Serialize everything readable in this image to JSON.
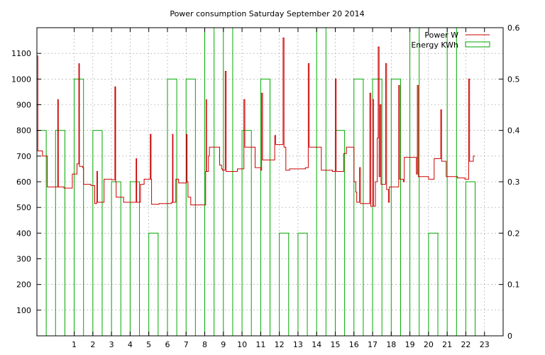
{
  "chart_data": {
    "type": "line",
    "title": "Power consumption Saturday September 20 2014",
    "xlabel": "",
    "ylabel": "",
    "y2label": "",
    "xlim": [
      -1,
      24
    ],
    "ylim": [
      0,
      1200
    ],
    "y2lim": [
      0,
      0.6
    ],
    "x_ticks": [
      "1",
      "2",
      "3",
      "4",
      "5",
      "6",
      "7",
      "8",
      "9",
      "10",
      "11",
      "12",
      "13",
      "14",
      "15",
      "16",
      "17",
      "18",
      "19",
      "20",
      "21",
      "22",
      "23"
    ],
    "y_ticks": [
      "100",
      "200",
      "300",
      "400",
      "500",
      "600",
      "700",
      "800",
      "900",
      "1000",
      "1100"
    ],
    "y2_ticks": [
      "0",
      "0.1",
      "0.2",
      "0.3",
      "0.4",
      "0.5",
      "0.6"
    ],
    "grid": true,
    "legend_position": "top-right",
    "colors": {
      "power": "#cc0000",
      "energy": "#00aa00"
    },
    "series": [
      {
        "name": "Power W",
        "axis": "left",
        "style": "step-line",
        "color": "#cc0000",
        "points": [
          [
            -1.0,
            1090
          ],
          [
            -0.95,
            720
          ],
          [
            -0.75,
            720
          ],
          [
            -0.7,
            700
          ],
          [
            -0.5,
            700
          ],
          [
            -0.45,
            580
          ],
          [
            0.1,
            580
          ],
          [
            0.12,
            920
          ],
          [
            0.15,
            580
          ],
          [
            0.4,
            580
          ],
          [
            0.45,
            575
          ],
          [
            0.8,
            575
          ],
          [
            0.9,
            630
          ],
          [
            1.1,
            630
          ],
          [
            1.15,
            670
          ],
          [
            1.22,
            670
          ],
          [
            1.25,
            1060
          ],
          [
            1.28,
            660
          ],
          [
            1.45,
            655
          ],
          [
            1.5,
            590
          ],
          [
            1.85,
            590
          ],
          [
            1.9,
            585
          ],
          [
            2.05,
            585
          ],
          [
            2.1,
            515
          ],
          [
            2.2,
            520
          ],
          [
            2.22,
            640
          ],
          [
            2.25,
            520
          ],
          [
            2.55,
            520
          ],
          [
            2.6,
            610
          ],
          [
            2.9,
            610
          ],
          [
            3.0,
            608
          ],
          [
            3.15,
            608
          ],
          [
            3.18,
            970
          ],
          [
            3.22,
            600
          ],
          [
            3.25,
            540
          ],
          [
            3.6,
            540
          ],
          [
            3.65,
            520
          ],
          [
            4.3,
            520
          ],
          [
            4.32,
            690
          ],
          [
            4.35,
            520
          ],
          [
            4.5,
            520
          ],
          [
            4.55,
            590
          ],
          [
            4.7,
            590
          ],
          [
            4.75,
            610
          ],
          [
            5.05,
            610
          ],
          [
            5.08,
            785
          ],
          [
            5.12,
            610
          ],
          [
            5.15,
            512
          ],
          [
            5.5,
            512
          ],
          [
            5.55,
            515
          ],
          [
            6.15,
            515
          ],
          [
            6.2,
            518
          ],
          [
            6.25,
            520
          ],
          [
            6.27,
            785
          ],
          [
            6.3,
            520
          ],
          [
            6.4,
            520
          ],
          [
            6.45,
            610
          ],
          [
            6.55,
            610
          ],
          [
            6.6,
            595
          ],
          [
            7.0,
            595
          ],
          [
            7.02,
            785
          ],
          [
            7.05,
            600
          ],
          [
            7.1,
            540
          ],
          [
            7.2,
            540
          ],
          [
            7.25,
            510
          ],
          [
            8.0,
            510
          ],
          [
            8.05,
            640
          ],
          [
            8.08,
            920
          ],
          [
            8.1,
            640
          ],
          [
            8.15,
            640
          ],
          [
            8.2,
            700
          ],
          [
            8.25,
            735
          ],
          [
            8.75,
            735
          ],
          [
            8.8,
            665
          ],
          [
            8.9,
            650
          ],
          [
            8.95,
            645
          ],
          [
            9.05,
            645
          ],
          [
            9.1,
            1030
          ],
          [
            9.15,
            640
          ],
          [
            9.7,
            640
          ],
          [
            9.75,
            650
          ],
          [
            10.05,
            650
          ],
          [
            10.1,
            920
          ],
          [
            10.15,
            735
          ],
          [
            10.65,
            735
          ],
          [
            10.7,
            655
          ],
          [
            10.95,
            655
          ],
          [
            11.0,
            645
          ],
          [
            11.05,
            945
          ],
          [
            11.1,
            685
          ],
          [
            11.7,
            685
          ],
          [
            11.75,
            780
          ],
          [
            11.8,
            745
          ],
          [
            12.15,
            745
          ],
          [
            12.2,
            1160
          ],
          [
            12.25,
            735
          ],
          [
            12.3,
            735
          ],
          [
            12.35,
            645
          ],
          [
            12.55,
            650
          ],
          [
            13.3,
            650
          ],
          [
            13.4,
            655
          ],
          [
            13.55,
            1060
          ],
          [
            13.6,
            735
          ],
          [
            14.2,
            735
          ],
          [
            14.25,
            645
          ],
          [
            14.8,
            645
          ],
          [
            14.85,
            640
          ],
          [
            14.95,
            640
          ],
          [
            15.0,
            1000
          ],
          [
            15.05,
            640
          ],
          [
            15.4,
            640
          ],
          [
            15.45,
            710
          ],
          [
            15.55,
            710
          ],
          [
            15.6,
            735
          ],
          [
            15.95,
            735
          ],
          [
            16.0,
            600
          ],
          [
            16.1,
            560
          ],
          [
            16.15,
            520
          ],
          [
            16.3,
            655
          ],
          [
            16.35,
            515
          ],
          [
            16.8,
            515
          ],
          [
            16.85,
            945
          ],
          [
            16.9,
            505
          ],
          [
            17.0,
            920
          ],
          [
            17.05,
            505
          ],
          [
            17.15,
            600
          ],
          [
            17.25,
            770
          ],
          [
            17.3,
            1125
          ],
          [
            17.35,
            620
          ],
          [
            17.4,
            900
          ],
          [
            17.45,
            590
          ],
          [
            17.6,
            590
          ],
          [
            17.7,
            1060
          ],
          [
            17.75,
            570
          ],
          [
            17.85,
            520
          ],
          [
            17.9,
            580
          ],
          [
            18.35,
            580
          ],
          [
            18.4,
            975
          ],
          [
            18.45,
            610
          ],
          [
            18.6,
            610
          ],
          [
            18.65,
            600
          ],
          [
            18.7,
            695
          ],
          [
            19.3,
            695
          ],
          [
            19.35,
            630
          ],
          [
            19.4,
            975
          ],
          [
            19.45,
            620
          ],
          [
            19.9,
            620
          ],
          [
            20.0,
            610
          ],
          [
            20.25,
            610
          ],
          [
            20.3,
            690
          ],
          [
            20.6,
            690
          ],
          [
            20.65,
            880
          ],
          [
            20.7,
            680
          ],
          [
            20.9,
            680
          ],
          [
            20.95,
            620
          ],
          [
            21.5,
            620
          ],
          [
            21.55,
            615
          ],
          [
            21.9,
            615
          ],
          [
            21.95,
            610
          ],
          [
            22.1,
            610
          ],
          [
            22.15,
            1000
          ],
          [
            22.2,
            680
          ],
          [
            22.35,
            680
          ],
          [
            22.4,
            700
          ],
          [
            22.5,
            700
          ]
        ]
      },
      {
        "name": "Energy KWh",
        "axis": "right",
        "style": "boxes",
        "color": "#00aa00",
        "boxes": [
          [
            -0.75,
            0.4
          ],
          [
            0.25,
            0.4
          ],
          [
            1.25,
            0.5
          ],
          [
            2.25,
            0.4
          ],
          [
            3.25,
            0.3
          ],
          [
            4.25,
            0.3
          ],
          [
            5.25,
            0.2
          ],
          [
            6.25,
            0.5
          ],
          [
            7.25,
            0.5
          ],
          [
            8.25,
            0.6
          ],
          [
            9.25,
            0.6
          ],
          [
            10.25,
            0.4
          ],
          [
            11.25,
            0.5
          ],
          [
            12.25,
            0.2
          ],
          [
            13.25,
            0.2
          ],
          [
            14.25,
            0.6
          ],
          [
            15.25,
            0.4
          ],
          [
            16.25,
            0.5
          ],
          [
            17.25,
            0.5
          ],
          [
            18.25,
            0.5
          ],
          [
            19.25,
            0.6
          ],
          [
            20.25,
            0.2
          ],
          [
            21.25,
            0.6
          ],
          [
            22.25,
            0.3
          ]
        ]
      }
    ]
  }
}
